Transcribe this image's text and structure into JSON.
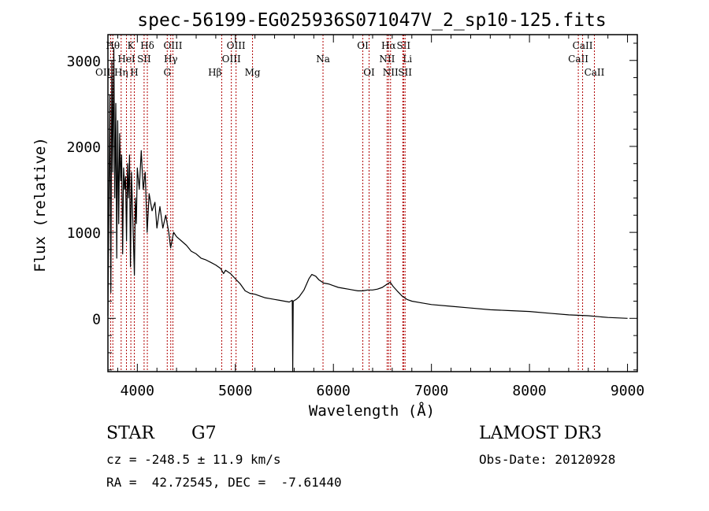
{
  "chart_data": {
    "type": "line",
    "title": "spec-56199-EG025936S071047V_2_sp10-125.fits",
    "xlabel": "Wavelength (Å)",
    "ylabel": "Flux (relative)",
    "xlim": [
      3700,
      9100
    ],
    "ylim": [
      -620,
      3300
    ],
    "x_ticks": [
      4000,
      5000,
      6000,
      7000,
      8000,
      9000
    ],
    "y_ticks": [
      0,
      1000,
      2000,
      3000
    ],
    "grid": false,
    "series": [
      {
        "name": "flux",
        "color": "#000000",
        "points": [
          [
            3700,
            30
          ],
          [
            3720,
            2600
          ],
          [
            3730,
            300
          ],
          [
            3740,
            3000
          ],
          [
            3750,
            1700
          ],
          [
            3760,
            3150
          ],
          [
            3770,
            1400
          ],
          [
            3780,
            2500
          ],
          [
            3790,
            700
          ],
          [
            3800,
            2300
          ],
          [
            3810,
            1100
          ],
          [
            3820,
            2150
          ],
          [
            3830,
            1600
          ],
          [
            3840,
            1900
          ],
          [
            3850,
            750
          ],
          [
            3860,
            1750
          ],
          [
            3870,
            1500
          ],
          [
            3880,
            1650
          ],
          [
            3890,
            900
          ],
          [
            3900,
            1800
          ],
          [
            3910,
            1400
          ],
          [
            3920,
            1900
          ],
          [
            3930,
            600
          ],
          [
            3940,
            1700
          ],
          [
            3950,
            1300
          ],
          [
            3960,
            900
          ],
          [
            3970,
            500
          ],
          [
            3980,
            1400
          ],
          [
            3990,
            1100
          ],
          [
            4000,
            1750
          ],
          [
            4020,
            1500
          ],
          [
            4040,
            1950
          ],
          [
            4060,
            1500
          ],
          [
            4080,
            1700
          ],
          [
            4100,
            1000
          ],
          [
            4120,
            1450
          ],
          [
            4150,
            1250
          ],
          [
            4180,
            1350
          ],
          [
            4200,
            1050
          ],
          [
            4230,
            1300
          ],
          [
            4260,
            1050
          ],
          [
            4290,
            1200
          ],
          [
            4320,
            1000
          ],
          [
            4340,
            820
          ],
          [
            4370,
            1000
          ],
          [
            4400,
            950
          ],
          [
            4450,
            900
          ],
          [
            4500,
            850
          ],
          [
            4550,
            780
          ],
          [
            4600,
            750
          ],
          [
            4650,
            700
          ],
          [
            4700,
            680
          ],
          [
            4750,
            650
          ],
          [
            4800,
            620
          ],
          [
            4850,
            580
          ],
          [
            4880,
            520
          ],
          [
            4900,
            560
          ],
          [
            4950,
            520
          ],
          [
            5000,
            460
          ],
          [
            5050,
            400
          ],
          [
            5100,
            320
          ],
          [
            5150,
            290
          ],
          [
            5200,
            280
          ],
          [
            5250,
            260
          ],
          [
            5300,
            240
          ],
          [
            5350,
            230
          ],
          [
            5400,
            220
          ],
          [
            5450,
            210
          ],
          [
            5500,
            200
          ],
          [
            5550,
            190
          ],
          [
            5580,
            210
          ],
          [
            5585,
            -620
          ],
          [
            5590,
            200
          ],
          [
            5620,
            220
          ],
          [
            5650,
            250
          ],
          [
            5700,
            330
          ],
          [
            5750,
            460
          ],
          [
            5780,
            510
          ],
          [
            5820,
            490
          ],
          [
            5850,
            450
          ],
          [
            5900,
            410
          ],
          [
            5950,
            400
          ],
          [
            6000,
            380
          ],
          [
            6050,
            360
          ],
          [
            6100,
            350
          ],
          [
            6150,
            340
          ],
          [
            6200,
            330
          ],
          [
            6250,
            320
          ],
          [
            6300,
            320
          ],
          [
            6350,
            330
          ],
          [
            6400,
            330
          ],
          [
            6450,
            340
          ],
          [
            6500,
            360
          ],
          [
            6550,
            400
          ],
          [
            6580,
            420
          ],
          [
            6610,
            370
          ],
          [
            6650,
            320
          ],
          [
            6700,
            260
          ],
          [
            6750,
            220
          ],
          [
            6800,
            200
          ],
          [
            6900,
            180
          ],
          [
            7000,
            160
          ],
          [
            7200,
            140
          ],
          [
            7400,
            120
          ],
          [
            7600,
            100
          ],
          [
            7800,
            90
          ],
          [
            8000,
            80
          ],
          [
            8200,
            60
          ],
          [
            8400,
            40
          ],
          [
            8600,
            30
          ],
          [
            8800,
            10
          ],
          [
            9000,
            0
          ]
        ]
      }
    ],
    "lines": [
      {
        "label": "OII",
        "x": 3727,
        "row": 2,
        "anchor": "end"
      },
      {
        "label": "Hθ",
        "x": 3750,
        "row": 0,
        "anchor": "middle"
      },
      {
        "label": "Hη",
        "x": 3835,
        "row": 2,
        "anchor": "middle"
      },
      {
        "label": "HeI",
        "x": 3889,
        "row": 1,
        "anchor": "middle"
      },
      {
        "label": "K",
        "x": 3934,
        "row": 0,
        "anchor": "middle"
      },
      {
        "label": "SII",
        "x": 4069,
        "row": 1,
        "anchor": "middle"
      },
      {
        "label": "H",
        "x": 3969,
        "row": 2,
        "anchor": "middle"
      },
      {
        "label": "Hδ",
        "x": 4102,
        "row": 0,
        "anchor": "middle"
      },
      {
        "label": "OIII",
        "x": 4363,
        "row": 0,
        "anchor": "middle"
      },
      {
        "label": "Hγ",
        "x": 4341,
        "row": 1,
        "anchor": "middle"
      },
      {
        "label": "G",
        "x": 4305,
        "row": 2,
        "anchor": "middle"
      },
      {
        "label": "Hβ",
        "x": 4861,
        "row": 2,
        "anchor": "end"
      },
      {
        "label": "OIII",
        "x": 4959,
        "row": 1,
        "anchor": "middle"
      },
      {
        "label": "OIII",
        "x": 5007,
        "row": 0,
        "anchor": "middle"
      },
      {
        "label": "Mg",
        "x": 5175,
        "row": 2,
        "anchor": "middle"
      },
      {
        "label": "Na",
        "x": 5894,
        "row": 1,
        "anchor": "middle"
      },
      {
        "label": "OI",
        "x": 6300,
        "row": 0,
        "anchor": "middle"
      },
      {
        "label": "OI",
        "x": 6364,
        "row": 2,
        "anchor": "middle"
      },
      {
        "label": "NII",
        "x": 6548,
        "row": 1,
        "anchor": "middle"
      },
      {
        "label": "Hα",
        "x": 6563,
        "row": 0,
        "anchor": "middle"
      },
      {
        "label": "NII",
        "x": 6583,
        "row": 2,
        "anchor": "middle"
      },
      {
        "label": "Li",
        "x": 6708,
        "row": 1,
        "anchor": "start"
      },
      {
        "label": "SII",
        "x": 6716,
        "row": 0,
        "anchor": "middle"
      },
      {
        "label": "SII",
        "x": 6731,
        "row": 2,
        "anchor": "middle"
      },
      {
        "label": "CaII",
        "x": 8498,
        "row": 1,
        "anchor": "middle"
      },
      {
        "label": "CaII",
        "x": 8542,
        "row": 0,
        "anchor": "middle"
      },
      {
        "label": "CaII",
        "x": 8662,
        "row": 2,
        "anchor": "middle"
      }
    ]
  },
  "info": {
    "class_label": "STAR",
    "subclass": "G7",
    "survey": "LAMOST DR3",
    "cz": "cz = -248.5 ± 11.9 km/s",
    "obs_date": "Obs-Date: 20120928",
    "coords": "RA =  42.72545, DEC =  -7.61440"
  }
}
